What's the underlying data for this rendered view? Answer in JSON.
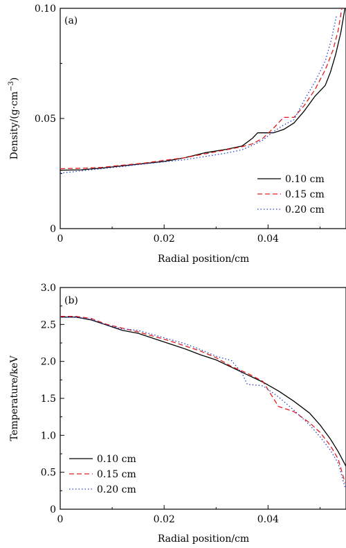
{
  "chart_data": [
    {
      "type": "line",
      "panel_label": "(a)",
      "xlabel": "Radial position/cm",
      "ylabel": "Density/(g·cm",
      "ylabel_sup": "−3",
      "ylabel_close": ")",
      "xlim": [
        0,
        0.055
      ],
      "ylim": [
        0,
        0.1
      ],
      "xticks": [
        0,
        0.02,
        0.04
      ],
      "xtick_labels": [
        "0",
        "0.02",
        "0.04"
      ],
      "yticks": [
        0,
        0.05,
        0.1
      ],
      "ytick_labels": [
        "0",
        "0.05",
        "0.10"
      ],
      "legend_position": "bottom-right",
      "grid": false,
      "series": [
        {
          "name": "0.10 cm",
          "color": "#000000",
          "dash": "solid",
          "x": [
            0,
            0.004,
            0.008,
            0.012,
            0.016,
            0.02,
            0.024,
            0.028,
            0.032,
            0.035,
            0.037,
            0.038,
            0.0395,
            0.041,
            0.043,
            0.045,
            0.047,
            0.049,
            0.051,
            0.052,
            0.053,
            0.054,
            0.0548
          ],
          "y": [
            0.0265,
            0.0267,
            0.0275,
            0.0285,
            0.0295,
            0.0305,
            0.0322,
            0.0345,
            0.036,
            0.0375,
            0.041,
            0.0435,
            0.0435,
            0.0435,
            0.045,
            0.048,
            0.0535,
            0.06,
            0.065,
            0.071,
            0.079,
            0.089,
            0.1
          ]
        },
        {
          "name": "0.15 cm",
          "color": "#e41a1c",
          "dash": "dashed",
          "x": [
            0,
            0.004,
            0.008,
            0.012,
            0.016,
            0.02,
            0.024,
            0.028,
            0.032,
            0.035,
            0.037,
            0.039,
            0.041,
            0.043,
            0.045,
            0.047,
            0.049,
            0.051,
            0.0525,
            0.0535,
            0.0542
          ],
          "y": [
            0.0272,
            0.0274,
            0.0278,
            0.0288,
            0.0297,
            0.031,
            0.0322,
            0.034,
            0.0358,
            0.0372,
            0.0385,
            0.041,
            0.0455,
            0.0505,
            0.0505,
            0.056,
            0.063,
            0.072,
            0.081,
            0.09,
            0.1
          ]
        },
        {
          "name": "0.20 cm",
          "color": "#1f3fd0",
          "dash": "dotted",
          "x": [
            0,
            0.004,
            0.008,
            0.012,
            0.016,
            0.02,
            0.024,
            0.028,
            0.032,
            0.035,
            0.037,
            0.039,
            0.041,
            0.043,
            0.045,
            0.047,
            0.049,
            0.051,
            0.0522,
            0.0532
          ],
          "y": [
            0.0252,
            0.0262,
            0.0272,
            0.0282,
            0.0293,
            0.0303,
            0.0313,
            0.0328,
            0.0343,
            0.0358,
            0.0378,
            0.0402,
            0.044,
            0.047,
            0.0495,
            0.0585,
            0.0665,
            0.076,
            0.086,
            0.097
          ]
        }
      ]
    },
    {
      "type": "line",
      "panel_label": "(b)",
      "xlabel": "Radial position/cm",
      "ylabel": "Temperature/keV",
      "xlim": [
        0,
        0.055
      ],
      "ylim": [
        0,
        3.0
      ],
      "xticks": [
        0,
        0.02,
        0.04
      ],
      "xtick_labels": [
        "0",
        "0.02",
        "0.04"
      ],
      "yticks": [
        0,
        0.5,
        1.0,
        1.5,
        2.0,
        2.5,
        3.0
      ],
      "ytick_labels": [
        "0",
        "0.5",
        "1.0",
        "1.5",
        "2.0",
        "2.5",
        "3.0"
      ],
      "legend_position": "bottom-left",
      "grid": false,
      "series": [
        {
          "name": "0.10 cm",
          "color": "#000000",
          "dash": "solid",
          "x": [
            0,
            0.003,
            0.006,
            0.009,
            0.012,
            0.015,
            0.018,
            0.021,
            0.024,
            0.027,
            0.03,
            0.033,
            0.036,
            0.039,
            0.042,
            0.045,
            0.048,
            0.05,
            0.052,
            0.0535,
            0.055
          ],
          "y": [
            2.6,
            2.6,
            2.56,
            2.49,
            2.42,
            2.38,
            2.31,
            2.24,
            2.17,
            2.09,
            2.02,
            1.92,
            1.82,
            1.72,
            1.6,
            1.46,
            1.3,
            1.14,
            0.95,
            0.78,
            0.58
          ]
        },
        {
          "name": "0.15 cm",
          "color": "#e41a1c",
          "dash": "dashed",
          "x": [
            0,
            0.003,
            0.006,
            0.009,
            0.012,
            0.015,
            0.018,
            0.021,
            0.024,
            0.027,
            0.03,
            0.033,
            0.036,
            0.039,
            0.042,
            0.045,
            0.048,
            0.05,
            0.052,
            0.0535,
            0.0548
          ],
          "y": [
            2.61,
            2.61,
            2.58,
            2.5,
            2.45,
            2.4,
            2.34,
            2.28,
            2.21,
            2.14,
            2.05,
            1.93,
            1.84,
            1.73,
            1.39,
            1.32,
            1.17,
            1.04,
            0.86,
            0.68,
            0.36
          ]
        },
        {
          "name": "0.20 cm",
          "color": "#1f3fd0",
          "dash": "dotted",
          "x": [
            0,
            0.003,
            0.006,
            0.009,
            0.012,
            0.015,
            0.018,
            0.021,
            0.024,
            0.027,
            0.03,
            0.033,
            0.035,
            0.036,
            0.039,
            0.042,
            0.045,
            0.048,
            0.05,
            0.052,
            0.0535,
            0.0548
          ],
          "y": [
            2.6,
            2.6,
            2.57,
            2.49,
            2.44,
            2.42,
            2.36,
            2.3,
            2.24,
            2.16,
            2.07,
            2.01,
            1.84,
            1.69,
            1.67,
            1.52,
            1.34,
            1.14,
            0.98,
            0.8,
            0.62,
            0.3
          ]
        }
      ]
    }
  ]
}
